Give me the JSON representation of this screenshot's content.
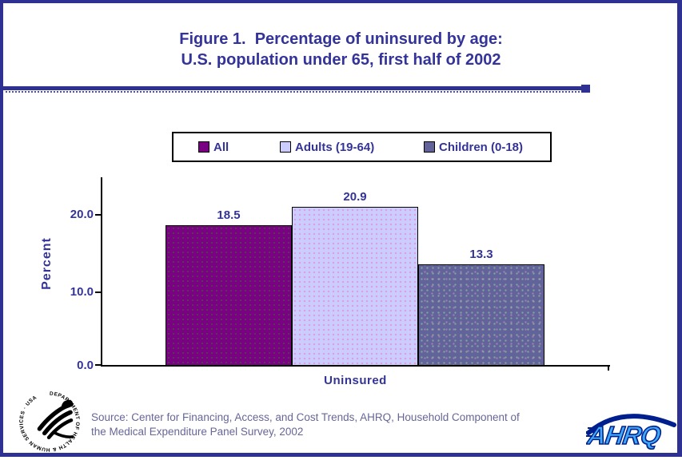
{
  "page": {
    "background": "#FFFFFF",
    "border_color": "#2E3192",
    "accent_text_color": "#333399"
  },
  "title": {
    "line1": "Figure 1.  Percentage of uninsured by age:",
    "line2": "U.S. population under 65, first half of 2002"
  },
  "chart_data": {
    "type": "bar",
    "categories": [
      "All",
      "Adults (19-64)",
      "Children (0-18)"
    ],
    "values": [
      18.5,
      20.9,
      13.3
    ],
    "title": "Figure 1. Percentage of uninsured by age: U.S. population under 65, first half of 2002",
    "xlabel": "Uninsured",
    "ylabel": "Percent",
    "ylim": [
      0,
      25
    ],
    "yticks": [
      "0.0",
      "10.0",
      "20.0"
    ],
    "grid": false,
    "legend_position": "top-center-boxed",
    "series_colors": [
      "#7A0084",
      "#CCCCFF",
      "#62639B"
    ],
    "bar_value_labels": [
      "18.5",
      "20.9",
      "13.3"
    ]
  },
  "source": {
    "line1": "Source: Center for Financing, Access, and Cost Trends, AHRQ, Household Component of",
    "line2": "the Medical Expenditure Panel Survey, 2002"
  },
  "logos": {
    "hhs_seal_text": "DEPARTMENT OF HEALTH & HUMAN SERVICES · USA",
    "ahrq_text": "AHRQ"
  }
}
